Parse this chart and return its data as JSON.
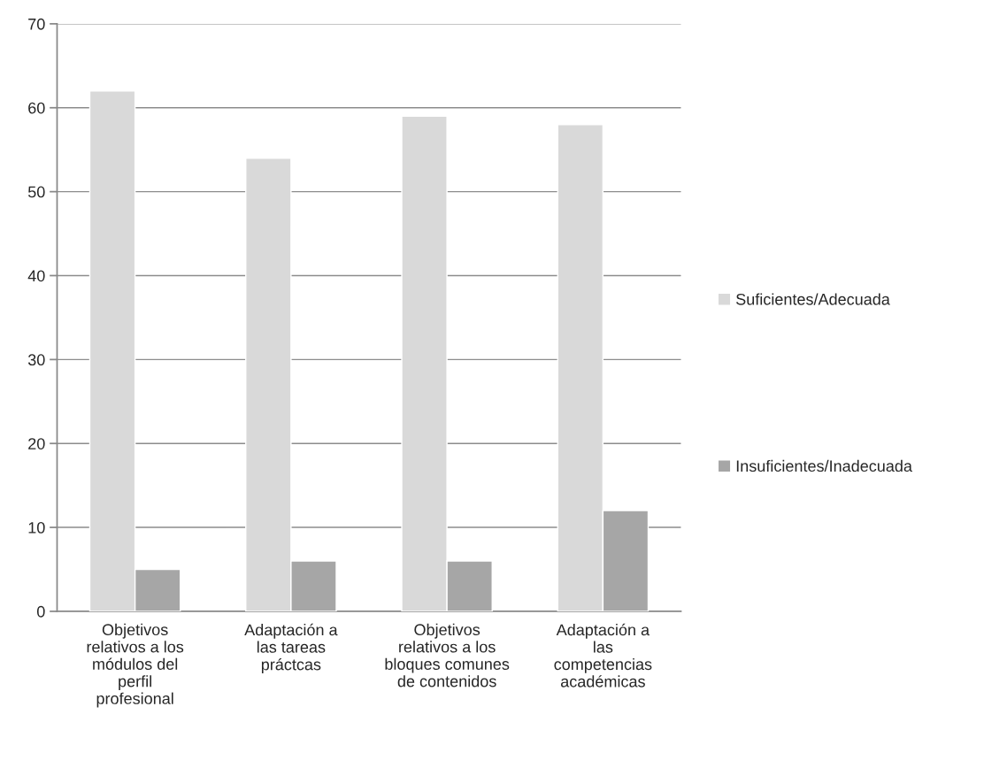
{
  "chart_data": {
    "type": "bar",
    "categories": [
      "Objetivos relativos a los módulos del perfil profesional",
      "Adaptación a las tareas práctcas",
      "Objetivos relativos a los bloques comunes de contenidos",
      "Adaptación a las competencias académicas"
    ],
    "series": [
      {
        "name": "Suficientes/Adecuada",
        "color": "#d9d9d9",
        "values": [
          62,
          54,
          59,
          58
        ]
      },
      {
        "name": "Insuficientes/Inadecuada",
        "color": "#a6a6a6",
        "values": [
          5,
          6,
          6,
          12
        ]
      }
    ],
    "ylim": [
      0,
      70
    ],
    "yticks": [
      0,
      10,
      20,
      30,
      40,
      50,
      60,
      70
    ],
    "grid": "y",
    "legend": "right"
  }
}
